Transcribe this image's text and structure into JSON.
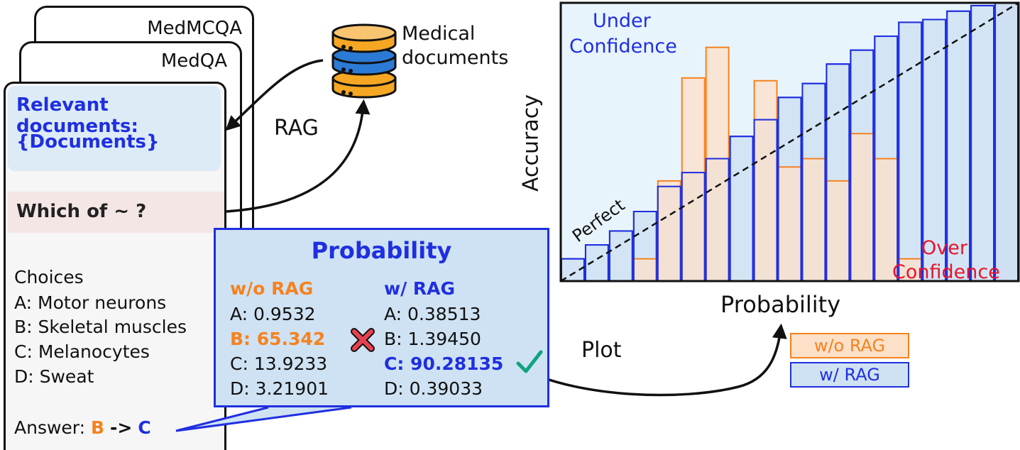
{
  "cards": {
    "back_title": "MedMCQA",
    "middle_title": "MedQA",
    "front": {
      "documents_heading": "Relevant documents:",
      "documents_placeholder": "{Documents}",
      "question": "Which of ~  ?",
      "choices_heading": "Choices",
      "choices": [
        "A: Motor neurons",
        "B: Skeletal muscles",
        "C: Melanocytes",
        "D: Sweat"
      ],
      "answer_label": "Answer:",
      "answer_before": "B",
      "answer_arrow": "->",
      "answer_after": "C"
    }
  },
  "database": {
    "label_line1": "Medical",
    "label_line2": "documents"
  },
  "rag_label": "RAG",
  "plot_label": "Plot",
  "probability_box": {
    "title": "Probability",
    "wo_rag_heading": "w/o RAG",
    "w_rag_heading": "w/ RAG",
    "wo_rag": [
      {
        "text": "A: 0.9532",
        "highlight": false
      },
      {
        "text": "B: 65.342",
        "highlight": true
      },
      {
        "text": "C: 13.9233",
        "highlight": false
      },
      {
        "text": "D: 3.21901",
        "highlight": false
      }
    ],
    "w_rag": [
      {
        "text": "A: 0.38513",
        "highlight": false
      },
      {
        "text": "B: 1.39450",
        "highlight": false
      },
      {
        "text": "C: 90.28135",
        "highlight": true
      },
      {
        "text": "D: 0.39033",
        "highlight": false
      }
    ],
    "wrong_icon": "cross-mark-icon",
    "correct_icon": "check-mark-icon"
  },
  "colors": {
    "blue": "#1f2fe0",
    "orange": "#f5821f",
    "red": "#e8142a",
    "green": "#10a37f",
    "orange_fill": "#fde0c8",
    "blue_fill": "#cfe2f3"
  },
  "chart_data": {
    "type": "bar",
    "xlabel": "Probability",
    "ylabel": "Accuracy",
    "annotations": {
      "under": [
        "Under",
        "Confidence"
      ],
      "over": [
        "Over",
        "Confidence"
      ],
      "diagonal": "Perfect"
    },
    "xlim": [
      0,
      1
    ],
    "ylim": [
      0,
      1
    ],
    "bins": 19,
    "series": [
      {
        "name": "w/o RAG",
        "values": [
          0,
          0,
          0,
          0.08,
          0.36,
          0.73,
          0.84,
          0,
          0.72,
          0.41,
          0.44,
          0.36,
          0.53,
          0.44,
          0.08,
          0,
          0,
          0,
          0
        ]
      },
      {
        "name": "w/ RAG",
        "values": [
          0.08,
          0.13,
          0.18,
          0.25,
          0.34,
          0.39,
          0.44,
          0.52,
          0.58,
          0.66,
          0.71,
          0.78,
          0.83,
          0.88,
          0.93,
          0.94,
          0.97,
          0.99,
          1.0
        ]
      }
    ],
    "legend": [
      "w/o RAG",
      "w/ RAG"
    ]
  }
}
